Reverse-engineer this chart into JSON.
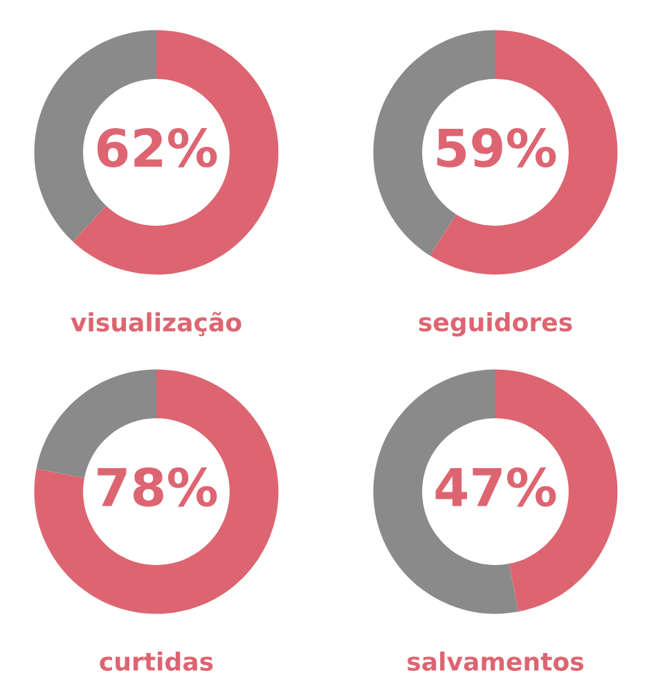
{
  "chart_data": [
    {
      "type": "donut",
      "title": "visualização",
      "categories": [
        null,
        null
      ],
      "values": [
        62,
        38
      ],
      "colors": [
        "#dd6571",
        "#8a8a8a"
      ],
      "value_labels": [
        "62%",
        null
      ]
    },
    {
      "type": "donut",
      "title": "seguidores",
      "categories": [
        null,
        null
      ],
      "values": [
        59,
        41
      ],
      "colors": [
        "#dd6571",
        "#8a8a8a"
      ],
      "value_labels": [
        "59%",
        null
      ]
    },
    {
      "type": "donut",
      "title": "curtidas",
      "categories": [
        null,
        null
      ],
      "values": [
        78,
        22
      ],
      "colors": [
        "#dd6571",
        "#8a8a8a"
      ],
      "value_labels": [
        "78%",
        null
      ]
    },
    {
      "type": "donut",
      "title": "salvamentos",
      "categories": [
        null,
        null
      ],
      "values": [
        47,
        53
      ],
      "colors": [
        "#dd6571",
        "#8a8a8a"
      ],
      "value_labels": [
        "47%",
        null
      ]
    }
  ]
}
